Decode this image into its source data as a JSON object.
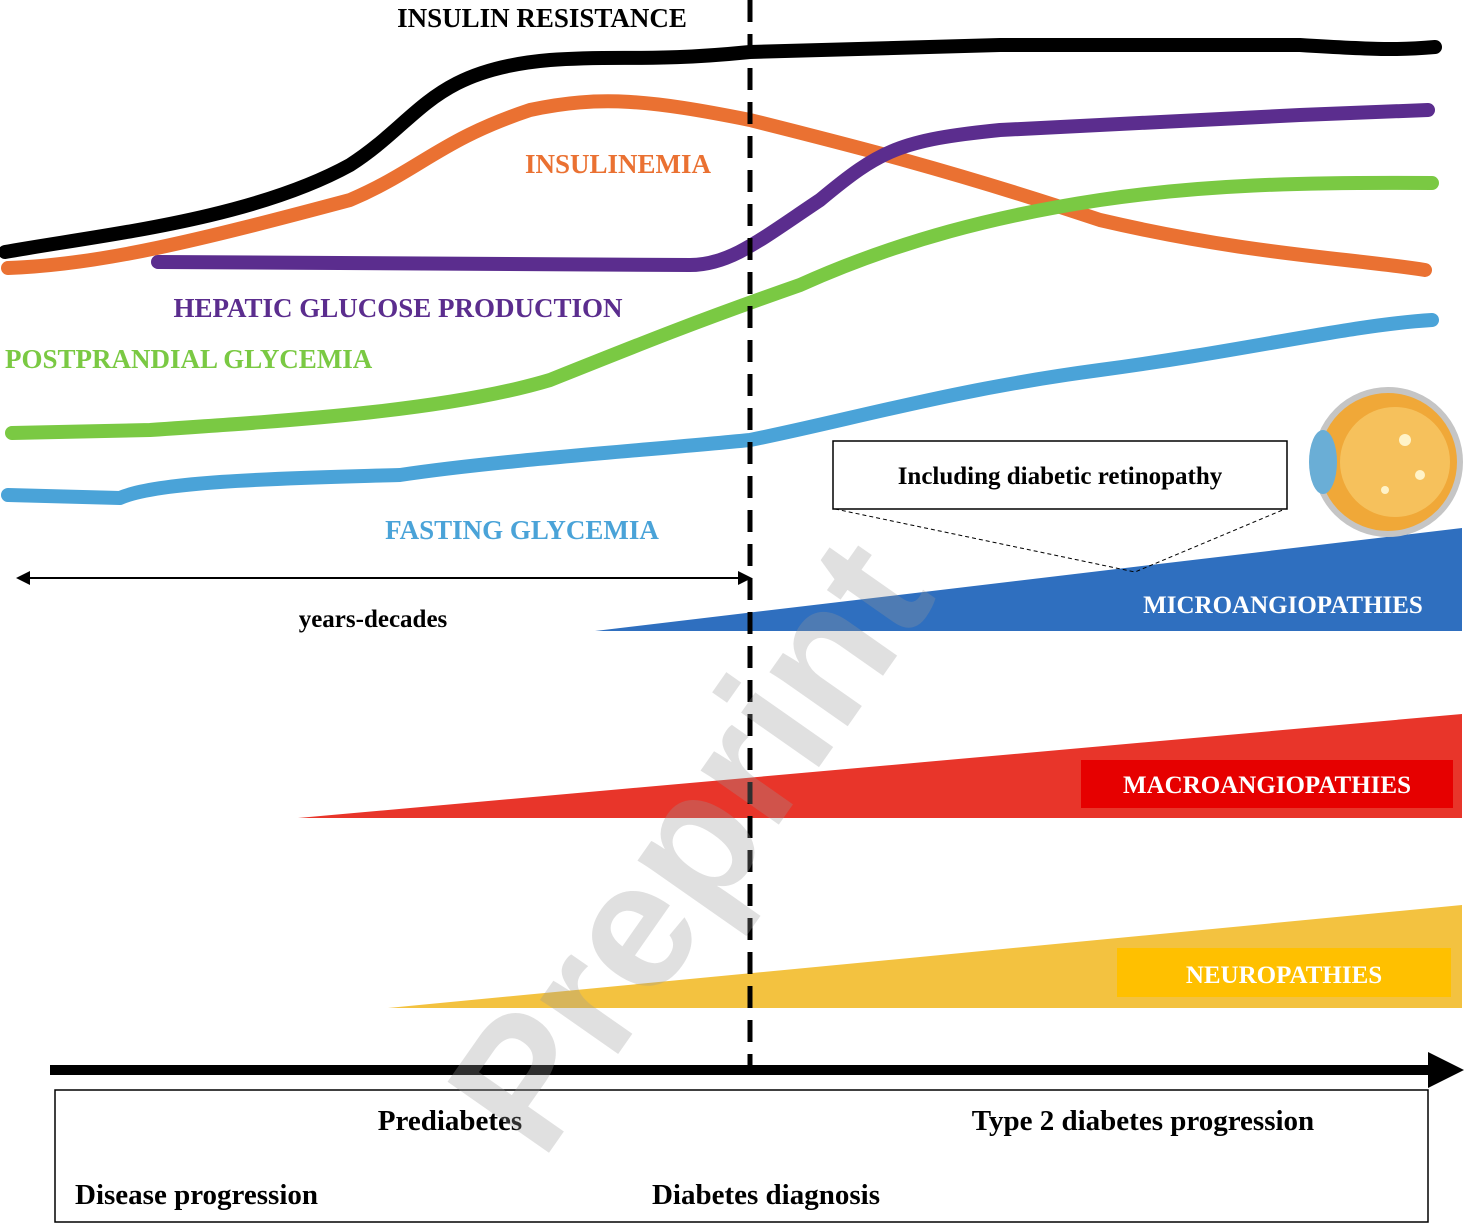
{
  "curves": [
    {
      "label": "INSULIN RESISTANCE"
    },
    {
      "label": "INSULINEMIA"
    },
    {
      "label": "HEPATIC GLUCOSE PRODUCTION"
    },
    {
      "label": "POSTPRANDIAL GLYCEMIA"
    },
    {
      "label": "FASTING GLYCEMIA"
    }
  ],
  "duration": "years-decades",
  "callout": "Including diabetic retinopathy",
  "complications": [
    {
      "label": "MICROANGIOPATHIES"
    },
    {
      "label": "MACROANGIOPATHIES"
    },
    {
      "label": "NEUROPATHIES"
    }
  ],
  "timeline": {
    "prediabetes": "Prediabetes",
    "progression": "Type 2 diabetes progression",
    "disease_progression": "Disease progression",
    "diagnosis": "Diabetes diagnosis"
  },
  "watermark": "Preprint"
}
